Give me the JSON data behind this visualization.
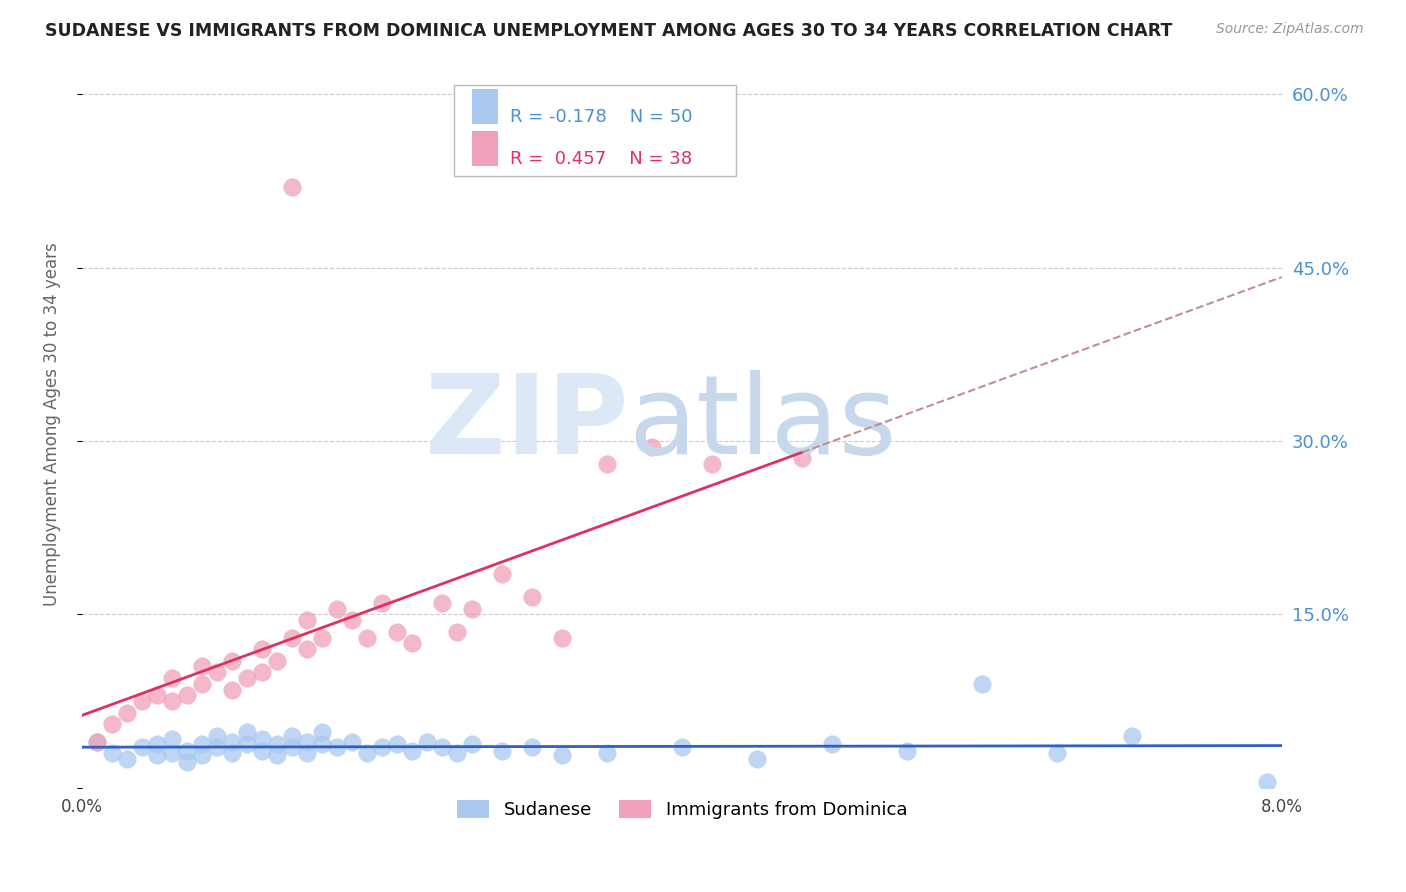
{
  "title": "SUDANESE VS IMMIGRANTS FROM DOMINICA UNEMPLOYMENT AMONG AGES 30 TO 34 YEARS CORRELATION CHART",
  "source": "Source: ZipAtlas.com",
  "ylabel": "Unemployment Among Ages 30 to 34 years",
  "xlim": [
    0.0,
    0.08
  ],
  "ylim": [
    0.0,
    0.63
  ],
  "xticks": [
    0.0,
    0.02,
    0.04,
    0.06,
    0.08
  ],
  "xticklabels": [
    "0.0%",
    "",
    "",
    "",
    "8.0%"
  ],
  "right_yticks": [
    0.0,
    0.15,
    0.3,
    0.45,
    0.6
  ],
  "right_yticklabels": [
    "",
    "15.0%",
    "30.0%",
    "45.0%",
    "60.0%"
  ],
  "grid_color": "#cccccc",
  "background_color": "#ffffff",
  "blue_color": "#a8c8f0",
  "pink_color": "#f0a0b8",
  "blue_line_color": "#3060c0",
  "pink_line_color": "#e03060",
  "pink_dash_color": "#c09090",
  "legend_r1": "R = -0.178",
  "legend_n1": "N = 50",
  "legend_r2": "R =  0.457",
  "legend_n2": "N = 38",
  "sudanese_x": [
    0.001,
    0.002,
    0.003,
    0.004,
    0.005,
    0.005,
    0.006,
    0.006,
    0.007,
    0.007,
    0.008,
    0.008,
    0.009,
    0.009,
    0.01,
    0.01,
    0.011,
    0.011,
    0.012,
    0.012,
    0.013,
    0.013,
    0.014,
    0.014,
    0.015,
    0.015,
    0.016,
    0.016,
    0.017,
    0.018,
    0.019,
    0.02,
    0.021,
    0.022,
    0.023,
    0.024,
    0.025,
    0.026,
    0.028,
    0.03,
    0.032,
    0.035,
    0.04,
    0.045,
    0.05,
    0.055,
    0.06,
    0.065,
    0.07,
    0.079
  ],
  "sudanese_y": [
    0.04,
    0.03,
    0.025,
    0.035,
    0.028,
    0.038,
    0.03,
    0.042,
    0.032,
    0.022,
    0.038,
    0.028,
    0.045,
    0.035,
    0.04,
    0.03,
    0.048,
    0.038,
    0.042,
    0.032,
    0.038,
    0.028,
    0.035,
    0.045,
    0.04,
    0.03,
    0.038,
    0.048,
    0.035,
    0.04,
    0.03,
    0.035,
    0.038,
    0.032,
    0.04,
    0.035,
    0.03,
    0.038,
    0.032,
    0.035,
    0.028,
    0.03,
    0.035,
    0.025,
    0.038,
    0.032,
    0.09,
    0.03,
    0.045,
    0.005
  ],
  "dominica_x": [
    0.001,
    0.002,
    0.003,
    0.004,
    0.005,
    0.006,
    0.006,
    0.007,
    0.008,
    0.008,
    0.009,
    0.01,
    0.01,
    0.011,
    0.012,
    0.012,
    0.013,
    0.014,
    0.015,
    0.015,
    0.016,
    0.017,
    0.018,
    0.019,
    0.02,
    0.021,
    0.022,
    0.024,
    0.025,
    0.026,
    0.028,
    0.03,
    0.032,
    0.035,
    0.038,
    0.042,
    0.048,
    0.014
  ],
  "dominica_y": [
    0.04,
    0.055,
    0.065,
    0.075,
    0.08,
    0.075,
    0.095,
    0.08,
    0.09,
    0.105,
    0.1,
    0.085,
    0.11,
    0.095,
    0.1,
    0.12,
    0.11,
    0.13,
    0.12,
    0.145,
    0.13,
    0.155,
    0.145,
    0.13,
    0.16,
    0.135,
    0.125,
    0.16,
    0.135,
    0.155,
    0.185,
    0.165,
    0.13,
    0.28,
    0.295,
    0.28,
    0.285,
    0.52
  ]
}
